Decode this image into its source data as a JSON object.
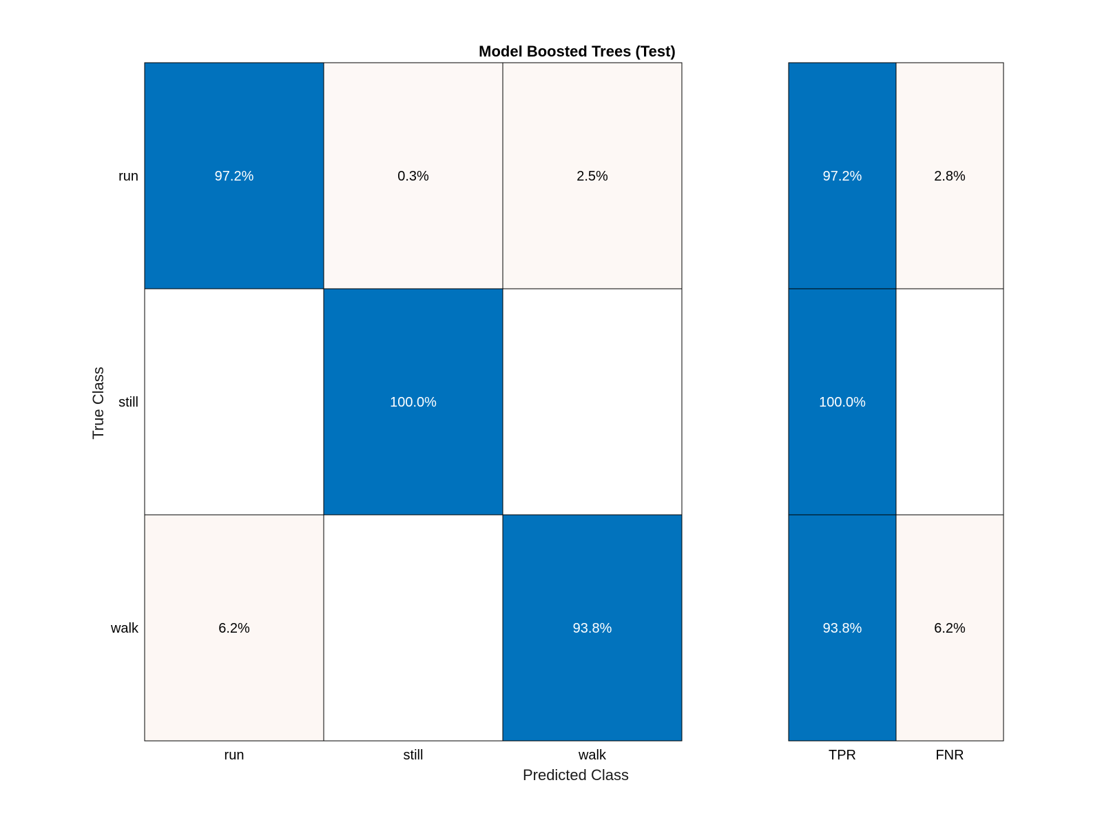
{
  "chart_data": {
    "type": "heatmap",
    "title": "Model Boosted Trees (Test)",
    "xlabel": "Predicted Class",
    "ylabel": "True Class",
    "classes": [
      "run",
      "still",
      "walk"
    ],
    "cells": [
      [
        {
          "value": 97.2,
          "label": "97.2%"
        },
        {
          "value": 0.3,
          "label": "0.3%"
        },
        {
          "value": 2.5,
          "label": "2.5%"
        }
      ],
      [
        {
          "value": 0,
          "label": ""
        },
        {
          "value": 100.0,
          "label": "100.0%"
        },
        {
          "value": 0,
          "label": ""
        }
      ],
      [
        {
          "value": 6.2,
          "label": "6.2%"
        },
        {
          "value": 0,
          "label": ""
        },
        {
          "value": 93.8,
          "label": "93.8%"
        }
      ]
    ],
    "summary": {
      "columns": [
        "TPR",
        "FNR"
      ],
      "cells": [
        [
          {
            "value": 97.2,
            "label": "97.2%"
          },
          {
            "value": 2.8,
            "label": "2.8%"
          }
        ],
        [
          {
            "value": 100.0,
            "label": "100.0%"
          },
          {
            "value": 0,
            "label": ""
          }
        ],
        [
          {
            "value": 93.8,
            "label": "93.8%"
          },
          {
            "value": 6.2,
            "label": "6.2%"
          }
        ]
      ]
    },
    "colors": {
      "correct": "#0072BD",
      "error": "#D95319",
      "background": "#FFFFFF",
      "grid": "#000000"
    }
  }
}
